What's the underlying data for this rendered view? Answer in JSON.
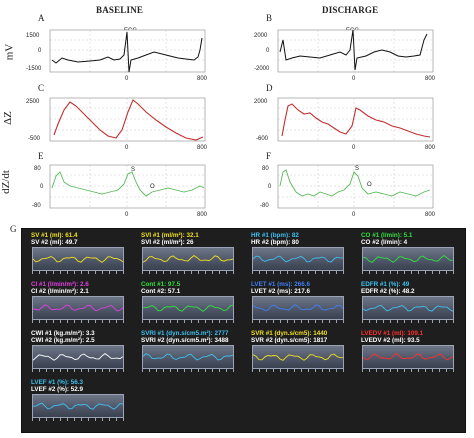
{
  "titles": {
    "baseline": "BASELINE",
    "discharge": "DISCHARGE"
  },
  "row_labels": {
    "ecg": "mV",
    "dz": "ΔZ",
    "dzdt": "dZ/dt"
  },
  "panels": {
    "A": {
      "letter": "A",
      "label": "ECG",
      "yticks": [
        "1500",
        "0",
        "-1500"
      ],
      "xticks": [
        "0",
        "800"
      ]
    },
    "B": {
      "letter": "B",
      "label": "ECG",
      "yticks": [
        "2000",
        "0",
        "-2000"
      ],
      "xticks": [
        "0",
        "800"
      ]
    },
    "C": {
      "letter": "C",
      "yticks": [
        "2500",
        "-500"
      ],
      "xticks": [
        "0",
        "800"
      ]
    },
    "D": {
      "letter": "D",
      "yticks": [
        "2000",
        "-600"
      ],
      "xticks": [
        "0",
        "800"
      ]
    },
    "E": {
      "letter": "E",
      "marks": [
        "S",
        "O"
      ],
      "yticks": [
        "80",
        "0",
        "-80"
      ],
      "xticks": [
        "0",
        "800"
      ]
    },
    "F": {
      "letter": "F",
      "marks": [
        "S",
        "O"
      ],
      "yticks": [
        "80",
        "0",
        "-80"
      ],
      "xticks": [
        "0",
        "800"
      ]
    }
  },
  "dashboard": {
    "letter": "G",
    "tiles": [
      {
        "line1": "SV #1 (ml): 61.4",
        "line2": "SV #2 (ml): 49.7",
        "color": "#f0e020"
      },
      {
        "line1": "SVI #1 (ml/m²): 32.1",
        "line2": "SVI #2 (ml/m²): 26",
        "color": "#f0e020"
      },
      {
        "line1": "HR #1 (bpm): 82",
        "line2": "HR #2 (bpm): 80",
        "color": "#3fc0f0"
      },
      {
        "line1": "CO #1 (l/min): 5.1",
        "line2": "CO #2 (l/min): 4",
        "color": "#30e040"
      },
      {
        "line1": "CI #1 (l/min/m²): 2.6",
        "line2": "CI #2 (l/min/m²): 2.1",
        "color": "#e040e0"
      },
      {
        "line1": "Cont #1: 97.5",
        "line2": "Cont #2: 57.1",
        "color": "#30e040"
      },
      {
        "line1": "LVET #1 (ms): 266.6",
        "line2": "LVET #2 (ms): 217.6",
        "color": "#3f80f0"
      },
      {
        "line1": "EDFR #1 (%): 49",
        "line2": "EDFR #2 (%): 48.2",
        "color": "#3fc0f0"
      },
      {
        "line1": "CWI #1 (kg.m/m²): 3.3",
        "line2": "CWI #2 (kg.m/m²): 2.5",
        "color": "#ffffff"
      },
      {
        "line1": "SVRI #1 (dyn.s/cm5.m²): 2777",
        "line2": "SVRI #2 (dyn.s/cm5.m²): 3488",
        "color": "#3fc0f0"
      },
      {
        "line1": "SVR #1 (dyn.s/cm5): 1440",
        "line2": "SVR #2 (dyn.s/cm5): 1817",
        "color": "#f0e020"
      },
      {
        "line1": "LVEDV #1 (ml): 109.1",
        "line2": "LVEDV #2 (ml): 93.5",
        "color": "#ff3030"
      },
      {
        "line1": "LVEF #1 (%): 56.3",
        "line2": "LVEF #2 (%): 52.9",
        "color": "#3fc0f0"
      }
    ]
  }
}
